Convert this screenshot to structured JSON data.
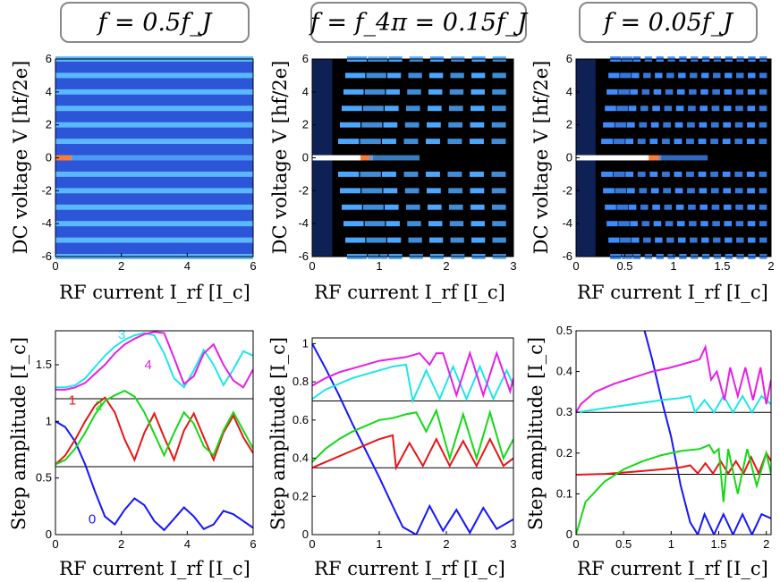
{
  "chart_data": [
    {
      "type": "heatmap",
      "title": "f = 0.5f_J",
      "xlabel": "RF current I_rf   [I_c]",
      "ylabel": "DC voltage V   [hf/2e]",
      "xlim": [
        0,
        6
      ],
      "ylim": [
        -6,
        6
      ],
      "xticks": [
        0,
        2,
        4,
        6
      ],
      "xticklabels": [
        "0",
        "2",
        "4",
        "6"
      ],
      "yticks": [
        -6,
        -4,
        -2,
        0,
        2,
        4,
        6
      ],
      "yticklabels": [
        "-6",
        "-4",
        "-2",
        "0",
        "2",
        "4",
        "6"
      ],
      "voltage_steps": [
        -6,
        -5,
        -4,
        -3,
        -2,
        -1,
        0,
        1,
        2,
        3,
        4,
        5,
        6
      ],
      "background": "#2d55d8",
      "step_color": "#5ab8ff",
      "peak_color": "#ff7a33"
    },
    {
      "type": "heatmap",
      "title": "f = f_4π = 0.15f_J",
      "xlabel": "RF current I_rf   [I_c]",
      "ylabel": "DC voltage V   [hf/2e]",
      "xlim": [
        0,
        3
      ],
      "ylim": [
        -6,
        6
      ],
      "xticks": [
        0,
        1,
        2,
        3
      ],
      "xticklabels": [
        "0",
        "1",
        "2",
        "3"
      ],
      "yticks": [
        -6,
        -4,
        -2,
        0,
        2,
        4,
        6
      ],
      "yticklabels": [
        "-6",
        "-4",
        "-2",
        "0",
        "2",
        "4",
        "6"
      ],
      "voltage_steps": [
        -6,
        -5,
        -4,
        -3,
        -2,
        -1,
        0,
        1,
        2,
        3,
        4,
        5,
        6
      ],
      "background": "#000000",
      "step_color": "#4aa6ff",
      "peak_color": "#ff7a33"
    },
    {
      "type": "heatmap",
      "title": "f = 0.05f_J",
      "xlabel": "RF current I_rf   [I_c]",
      "ylabel": "DC voltage V   [hf/2e]",
      "xlim": [
        0,
        2
      ],
      "ylim": [
        -6,
        6
      ],
      "xticks": [
        0,
        0.5,
        1,
        1.5,
        2
      ],
      "xticklabels": [
        "0",
        "0.5",
        "1",
        "1.5",
        "2"
      ],
      "yticks": [
        -6,
        -4,
        -2,
        0,
        2,
        4,
        6
      ],
      "yticklabels": [
        "-6",
        "-4",
        "-2",
        "0",
        "2",
        "4",
        "6"
      ],
      "voltage_steps": [
        -6,
        -5,
        -4,
        -3,
        -2,
        -1,
        0,
        1,
        2,
        3,
        4,
        5,
        6
      ],
      "background": "#000000",
      "step_color": "#3d8cff",
      "peak_color": "#ff7a33"
    },
    {
      "type": "line",
      "xlabel": "RF current I_rf   [I_c]",
      "ylabel": "Step amplitude [I_c]",
      "xlim": [
        0,
        6
      ],
      "ylim": [
        0,
        1.8
      ],
      "xticks": [
        0,
        2,
        4,
        6
      ],
      "xticklabels": [
        "0",
        "2",
        "4",
        "6"
      ],
      "yticks": [
        0,
        0.5,
        1,
        1.5
      ],
      "yticklabels": [
        "0",
        "0.5",
        "1",
        "1.5"
      ],
      "baselines": [
        0.6,
        1.2
      ],
      "series": [
        {
          "name": "0",
          "color": "#1515ff",
          "x": [
            0,
            0.3,
            0.6,
            0.9,
            1.2,
            1.5,
            1.8,
            2.1,
            2.4,
            2.7,
            3.0,
            3.3,
            3.6,
            3.9,
            4.2,
            4.5,
            4.8,
            5.1,
            5.4,
            5.7,
            6.0
          ],
          "y": [
            1.0,
            0.95,
            0.82,
            0.62,
            0.38,
            0.16,
            0.09,
            0.22,
            0.32,
            0.26,
            0.12,
            0.04,
            0.14,
            0.24,
            0.16,
            0.05,
            0.09,
            0.21,
            0.18,
            0.12,
            0.06
          ]
        },
        {
          "name": "1",
          "color": "#e81515",
          "x": [
            0,
            0.3,
            0.6,
            0.9,
            1.2,
            1.5,
            1.8,
            2.1,
            2.4,
            2.7,
            3.0,
            3.3,
            3.6,
            3.9,
            4.2,
            4.5,
            4.8,
            5.1,
            5.4,
            5.7,
            6.0
          ],
          "y": [
            0.62,
            0.7,
            0.84,
            1.0,
            1.14,
            1.21,
            1.08,
            0.84,
            0.66,
            0.9,
            1.07,
            0.86,
            0.66,
            0.92,
            1.07,
            0.86,
            0.66,
            0.9,
            1.05,
            0.86,
            0.72
          ]
        },
        {
          "name": "2",
          "color": "#15d815",
          "x": [
            0,
            0.3,
            0.6,
            0.9,
            1.2,
            1.5,
            1.8,
            2.1,
            2.4,
            2.7,
            3.0,
            3.3,
            3.6,
            3.9,
            4.2,
            4.5,
            4.8,
            5.1,
            5.4,
            5.7,
            6.0
          ],
          "y": [
            0.62,
            0.66,
            0.76,
            0.9,
            1.06,
            1.18,
            1.23,
            1.27,
            1.22,
            1.08,
            0.89,
            0.7,
            0.9,
            1.08,
            0.98,
            0.78,
            0.7,
            0.92,
            1.08,
            0.92,
            0.76
          ]
        },
        {
          "name": "3",
          "color": "#1ee6e6",
          "x": [
            0,
            0.3,
            0.6,
            0.9,
            1.2,
            1.5,
            1.8,
            2.1,
            2.4,
            2.7,
            3.0,
            3.3,
            3.6,
            3.9,
            4.2,
            4.5,
            4.8,
            5.1,
            5.4,
            5.7,
            6.0
          ],
          "y": [
            1.3,
            1.3,
            1.32,
            1.38,
            1.48,
            1.58,
            1.66,
            1.72,
            1.76,
            1.78,
            1.76,
            1.6,
            1.38,
            1.3,
            1.45,
            1.63,
            1.5,
            1.32,
            1.46,
            1.62,
            1.58
          ]
        },
        {
          "name": "4",
          "color": "#e61ee6",
          "x": [
            0,
            0.3,
            0.6,
            0.9,
            1.2,
            1.5,
            1.8,
            2.1,
            2.4,
            2.7,
            3.0,
            3.3,
            3.6,
            3.9,
            4.2,
            4.5,
            4.8,
            5.1,
            5.4,
            5.7,
            6.0
          ],
          "y": [
            1.28,
            1.28,
            1.3,
            1.34,
            1.42,
            1.5,
            1.6,
            1.68,
            1.73,
            1.77,
            1.79,
            1.78,
            1.56,
            1.33,
            1.4,
            1.6,
            1.68,
            1.5,
            1.36,
            1.3,
            1.46
          ]
        }
      ],
      "curve_labels": [
        {
          "text": "0",
          "x": 1.0,
          "y": 0.1,
          "color": "#1515ff"
        },
        {
          "text": "1",
          "x": 0.4,
          "y": 1.15,
          "color": "#e81515"
        },
        {
          "text": "2",
          "x": 1.2,
          "y": 1.1,
          "color": "#15d815"
        },
        {
          "text": "3",
          "x": 1.9,
          "y": 1.73,
          "color": "#1ee6e6"
        },
        {
          "text": "4",
          "x": 2.7,
          "y": 1.46,
          "color": "#e61ee6"
        }
      ]
    },
    {
      "type": "line",
      "xlabel": "RF current I_rf   [I_c]",
      "ylabel": "Step amplitude [I_c]",
      "xlim": [
        0,
        3
      ],
      "ylim": [
        0,
        1.03
      ],
      "xticks": [
        0,
        1,
        2,
        3
      ],
      "xticklabels": [
        "0",
        "1",
        "2",
        "3"
      ],
      "yticks": [
        0,
        0.2,
        0.4,
        0.6,
        0.8,
        1
      ],
      "yticklabels": [
        "0",
        "0.2",
        "0.4",
        "0.6",
        "0.8",
        "1"
      ],
      "baselines": [
        0.35,
        0.7
      ],
      "series": [
        {
          "name": "0",
          "color": "#1515ff",
          "x": [
            0,
            0.2,
            0.4,
            0.6,
            0.8,
            1.0,
            1.2,
            1.35,
            1.55,
            1.75,
            1.95,
            2.15,
            2.35,
            2.55,
            2.75,
            3.0
          ],
          "y": [
            1.0,
            0.87,
            0.73,
            0.58,
            0.44,
            0.3,
            0.15,
            0.04,
            0.0,
            0.15,
            0.02,
            0.13,
            0.01,
            0.14,
            0.03,
            0.08
          ]
        },
        {
          "name": "1",
          "color": "#e81515",
          "x": [
            0,
            0.2,
            0.4,
            0.6,
            0.8,
            1.0,
            1.2,
            1.25,
            1.45,
            1.65,
            1.85,
            2.05,
            2.25,
            2.45,
            2.65,
            2.85,
            3.0
          ],
          "y": [
            0.35,
            0.38,
            0.41,
            0.44,
            0.47,
            0.5,
            0.52,
            0.35,
            0.48,
            0.36,
            0.5,
            0.36,
            0.49,
            0.36,
            0.5,
            0.36,
            0.4
          ]
        },
        {
          "name": "2",
          "color": "#15d815",
          "x": [
            0,
            0.2,
            0.4,
            0.6,
            0.8,
            1.0,
            1.2,
            1.4,
            1.55,
            1.7,
            1.85,
            2.05,
            2.25,
            2.45,
            2.65,
            2.85,
            3.0
          ],
          "y": [
            0.38,
            0.45,
            0.5,
            0.54,
            0.57,
            0.6,
            0.61,
            0.63,
            0.64,
            0.54,
            0.65,
            0.4,
            0.63,
            0.4,
            0.64,
            0.4,
            0.5
          ]
        },
        {
          "name": "3",
          "color": "#1ee6e6",
          "x": [
            0,
            0.2,
            0.4,
            0.6,
            0.8,
            1.0,
            1.2,
            1.4,
            1.5,
            1.7,
            1.9,
            2.1,
            2.3,
            2.5,
            2.7,
            2.9,
            3.0
          ],
          "y": [
            0.71,
            0.76,
            0.79,
            0.82,
            0.84,
            0.86,
            0.88,
            0.89,
            0.7,
            0.86,
            0.71,
            0.88,
            0.71,
            0.88,
            0.71,
            0.86,
            0.78
          ]
        },
        {
          "name": "4",
          "color": "#e61ee6",
          "x": [
            0,
            0.2,
            0.4,
            0.6,
            0.8,
            1.0,
            1.2,
            1.4,
            1.6,
            1.75,
            1.85,
            1.95,
            2.15,
            2.35,
            2.55,
            2.75,
            2.95,
            3.0
          ],
          "y": [
            0.78,
            0.82,
            0.85,
            0.87,
            0.89,
            0.91,
            0.92,
            0.93,
            0.95,
            0.89,
            0.95,
            0.95,
            0.73,
            0.95,
            0.73,
            0.95,
            0.75,
            0.82
          ]
        }
      ]
    },
    {
      "type": "line",
      "xlabel": "RF current I_rf   [I_c]",
      "ylabel": "Step amplitude [I_c]",
      "xlim": [
        0,
        2.05
      ],
      "ylim": [
        0,
        0.5
      ],
      "xticks": [
        0,
        0.5,
        1,
        1.5,
        2
      ],
      "xticklabels": [
        "0",
        "0.5",
        "1",
        "1.5",
        "2"
      ],
      "yticks": [
        0,
        0.1,
        0.2,
        0.3,
        0.4,
        0.5
      ],
      "yticklabels": [
        "0",
        "0.1",
        "0.2",
        "0.3",
        "0.4",
        "0.5"
      ],
      "baselines": [
        0.148,
        0.3
      ],
      "series": [
        {
          "name": "0",
          "color": "#1515ff",
          "x": [
            0.72,
            0.8,
            0.9,
            1.0,
            1.1,
            1.2,
            1.28,
            1.35,
            1.45,
            1.55,
            1.65,
            1.75,
            1.85,
            1.95,
            2.05
          ],
          "y": [
            0.5,
            0.43,
            0.33,
            0.24,
            0.12,
            0.03,
            0.0,
            0.05,
            0.0,
            0.05,
            0.0,
            0.05,
            0.0,
            0.05,
            0.04
          ]
        },
        {
          "name": "1",
          "color": "#e81515",
          "x": [
            0,
            0.3,
            0.6,
            0.9,
            1.1,
            1.2,
            1.28,
            1.36,
            1.44,
            1.52,
            1.6,
            1.68,
            1.76,
            1.84,
            1.92,
            2.0,
            2.05
          ],
          "y": [
            0.147,
            0.149,
            0.154,
            0.16,
            0.165,
            0.17,
            0.15,
            0.175,
            0.15,
            0.18,
            0.15,
            0.18,
            0.15,
            0.19,
            0.15,
            0.2,
            0.18
          ]
        },
        {
          "name": "2",
          "color": "#15d815",
          "x": [
            0,
            0.1,
            0.3,
            0.5,
            0.7,
            0.9,
            1.1,
            1.3,
            1.4,
            1.45,
            1.5,
            1.55,
            1.6,
            1.7,
            1.8,
            1.9,
            2.0,
            2.05
          ],
          "y": [
            0.0,
            0.08,
            0.13,
            0.16,
            0.18,
            0.195,
            0.205,
            0.21,
            0.22,
            0.2,
            0.21,
            0.08,
            0.21,
            0.1,
            0.21,
            0.12,
            0.2,
            0.15
          ]
        },
        {
          "name": "3",
          "color": "#1ee6e6",
          "x": [
            0,
            0.3,
            0.6,
            0.9,
            1.1,
            1.2,
            1.25,
            1.35,
            1.45,
            1.55,
            1.65,
            1.75,
            1.85,
            1.95,
            2.05
          ],
          "y": [
            0.3,
            0.31,
            0.32,
            0.33,
            0.335,
            0.34,
            0.3,
            0.33,
            0.3,
            0.34,
            0.3,
            0.34,
            0.3,
            0.34,
            0.32
          ]
        },
        {
          "name": "4",
          "color": "#e61ee6",
          "x": [
            0,
            0.05,
            0.2,
            0.4,
            0.6,
            0.8,
            1.0,
            1.15,
            1.3,
            1.36,
            1.42,
            1.48,
            1.56,
            1.62,
            1.7,
            1.78,
            1.86,
            1.94,
            2.0,
            2.05
          ],
          "y": [
            0.3,
            0.32,
            0.35,
            0.37,
            0.385,
            0.4,
            0.41,
            0.42,
            0.43,
            0.46,
            0.38,
            0.4,
            0.33,
            0.41,
            0.34,
            0.41,
            0.33,
            0.41,
            0.32,
            0.38
          ]
        }
      ]
    }
  ]
}
